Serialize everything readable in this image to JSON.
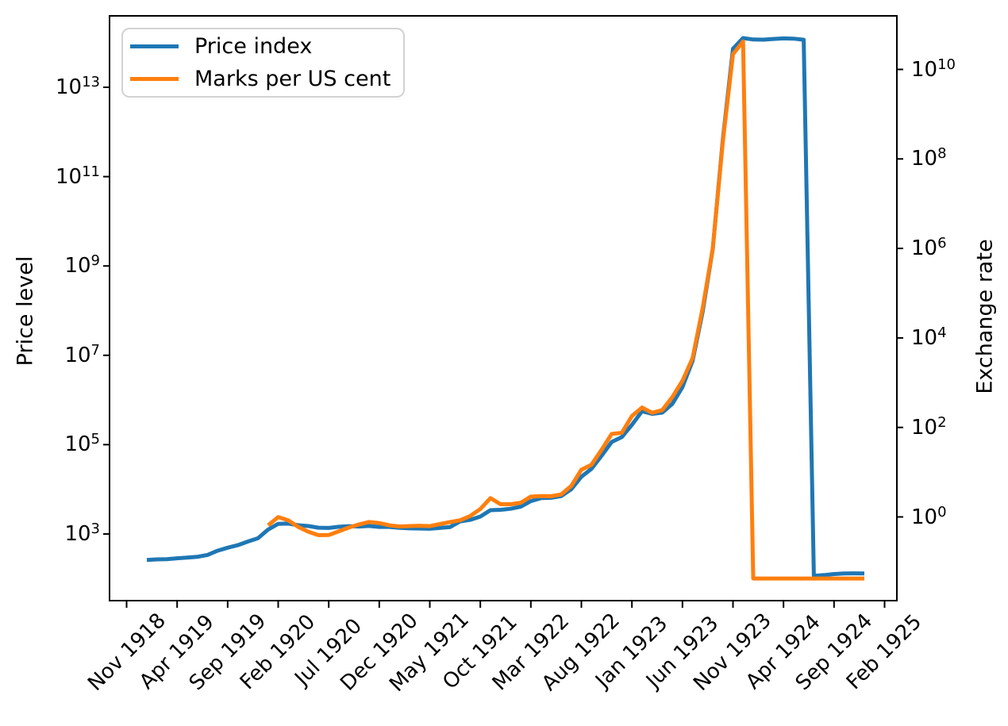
{
  "chart_data": {
    "type": "line",
    "title": "",
    "description": "German hyperinflation: wholesale price index and exchange rate (marks per US cent), monthly, log scale on both y axes",
    "x_axis": {
      "first_month_label": "Nov 1918",
      "tick_month_offsets": [
        0,
        5,
        10,
        15,
        20,
        25,
        30,
        35,
        40,
        45,
        50,
        55,
        60,
        65,
        70,
        75
      ],
      "tick_labels": [
        "Nov 1918",
        "Apr 1919",
        "Sep 1919",
        "Feb 1920",
        "Jul 1920",
        "Dec 1920",
        "May 1921",
        "Oct 1921",
        "Mar 1922",
        "Aug 1922",
        "Jan 1923",
        "Jun 1923",
        "Nov 1923",
        "Apr 1924",
        "Sep 1924",
        "Feb 1925"
      ]
    },
    "y_left": {
      "label": "Price level",
      "scale": "log",
      "tick_label_base": "10",
      "tick_exponents": [
        13,
        11,
        9,
        7,
        5,
        3
      ],
      "ylim": [
        31,
        420000000000000.0
      ]
    },
    "y_right": {
      "label": "Exchange rate",
      "scale": "log",
      "tick_label_base": "10",
      "tick_exponents": [
        10,
        8,
        6,
        4,
        2,
        0
      ],
      "ylim": [
        0.0128,
        166000000000.0
      ]
    },
    "grid": false,
    "legend": {
      "position": "upper left",
      "entries": [
        "Price index",
        "Marks per US cent"
      ]
    },
    "series": [
      {
        "name": "Price index",
        "color": "#1f77b4",
        "axis": "left",
        "start_month_index": 2,
        "start_month_label": "Jan 1919",
        "month_step": 1,
        "values": [
          262,
          270,
          274,
          286,
          297,
          308,
          339,
          422,
          493,
          562,
          678,
          803,
          1256,
          1685,
          1709,
          1567,
          1508,
          1382,
          1367,
          1450,
          1498,
          1466,
          1509,
          1440,
          1439,
          1376,
          1338,
          1326,
          1308,
          1366,
          1428,
          1917,
          2067,
          2460,
          3416,
          3487,
          3665,
          4103,
          5433,
          6355,
          6458,
          7030,
          10059,
          19200,
          28700,
          56600,
          115100,
          147500,
          278500,
          558500,
          488800,
          521200,
          817000,
          1939000,
          7478700,
          94404100,
          2394900000,
          709580000000,
          72570000000000,
          126160000000000,
          117320000000000,
          116170000000000,
          120670000000000,
          124050000000000,
          122460000000000,
          115900000000000,
          115.9,
          120.4,
          126.8,
          130.9,
          131.3,
          130.9
        ]
      },
      {
        "name": "Marks per US cent",
        "color": "#ff7f0e",
        "axis": "right",
        "start_month_index": 14,
        "start_month_label": "Jan 1920",
        "month_step": 1,
        "values": [
          0.648,
          0.9911,
          0.8389,
          0.5964,
          0.4648,
          0.3913,
          0.3948,
          0.4774,
          0.5798,
          0.6817,
          0.7724,
          0.73,
          0.6491,
          0.6131,
          0.6245,
          0.6353,
          0.623,
          0.6936,
          0.7667,
          0.8431,
          1.0491,
          1.502,
          2.6296,
          1.9193,
          1.9181,
          2.0782,
          2.8419,
          2.91,
          2.9011,
          3.1714,
          4.9322,
          11.3456,
          14.6587,
          31.8096,
          71.831,
          75.8927,
          179.72,
          279.18,
          211.9,
          244.75,
          476.7,
          1099.96,
          3534.12,
          46204.55,
          988600,
          252602000,
          21936000000,
          42000000000,
          0.042,
          0.042,
          0.042,
          0.042,
          0.042,
          0.042,
          0.042,
          0.042,
          0.042,
          0.042,
          0.042,
          0.042
        ]
      }
    ]
  }
}
